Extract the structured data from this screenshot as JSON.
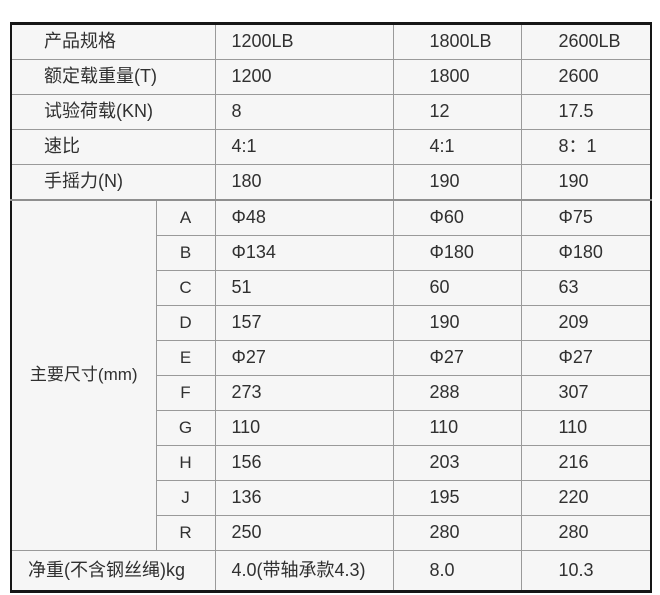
{
  "colors": {
    "page_bg": "#ffffff",
    "cell_bg": "#f6f6f6",
    "grid_line": "#9a9a9a",
    "outer_border": "#161616",
    "text": "#303030"
  },
  "table": {
    "spec_rows": [
      {
        "label": "产品规格",
        "values": [
          "1200LB",
          "1800LB",
          "2600LB"
        ]
      },
      {
        "label": "额定载重量(T)",
        "values": [
          "1200",
          "1800",
          "2600"
        ]
      },
      {
        "label": "试验荷载(KN)",
        "values": [
          "8",
          "12",
          "17.5"
        ]
      },
      {
        "label": "速比",
        "values": [
          "4:1",
          "4:1",
          "8：1"
        ]
      },
      {
        "label": "手摇力(N)",
        "values": [
          "180",
          "190",
          "190"
        ]
      }
    ],
    "dimensions": {
      "label": "主要尺寸(mm)",
      "rows": [
        {
          "key": "A",
          "values": [
            "Φ48",
            "Φ60",
            "Φ75"
          ]
        },
        {
          "key": "B",
          "values": [
            "Φ134",
            "Φ180",
            "Φ180"
          ]
        },
        {
          "key": "C",
          "values": [
            "51",
            "60",
            "63"
          ]
        },
        {
          "key": "D",
          "values": [
            "157",
            "190",
            "209"
          ]
        },
        {
          "key": "E",
          "values": [
            "Φ27",
            "Φ27",
            "Φ27"
          ]
        },
        {
          "key": "F",
          "values": [
            "273",
            "288",
            "307"
          ]
        },
        {
          "key": "G",
          "values": [
            "110",
            "110",
            "110"
          ]
        },
        {
          "key": "H",
          "values": [
            "156",
            "203",
            "216"
          ]
        },
        {
          "key": "J",
          "values": [
            "136",
            "195",
            "220"
          ]
        },
        {
          "key": "R",
          "values": [
            "250",
            "280",
            "280"
          ]
        }
      ]
    },
    "weight_row": {
      "label": "净重(不含钢丝绳)kg",
      "values": [
        "4.0(带轴承款4.3)",
        "8.0",
        "10.3"
      ]
    }
  }
}
